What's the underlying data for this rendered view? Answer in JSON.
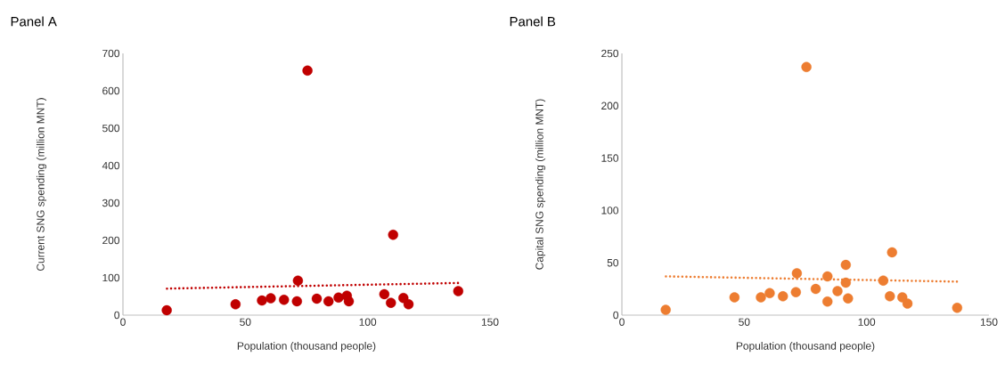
{
  "chart_data": [
    {
      "type": "scatter",
      "title": "Panel A",
      "xlabel": "Population (thousand people)",
      "ylabel": "Current SNG spending (million MNT)",
      "xlim": [
        0,
        150
      ],
      "xticks": [
        0,
        50,
        100,
        150
      ],
      "ylim": [
        0,
        700
      ],
      "yticks": [
        0,
        100,
        200,
        300,
        400,
        500,
        600,
        700
      ],
      "series": [
        {
          "color": "#c00000",
          "marker": "circle",
          "x": [
            17.9,
            46.0,
            56.8,
            60.4,
            65.8,
            71.1,
            71.5,
            75.4,
            79.2,
            84.0,
            88.1,
            91.5,
            92.3,
            106.8,
            110.4,
            109.5,
            114.6,
            116.7,
            137.0
          ],
          "values": [
            13,
            29,
            39,
            45,
            41,
            37,
            92,
            654,
            44,
            37,
            47,
            52,
            37,
            56,
            215,
            33,
            46,
            29,
            64
          ]
        },
        {
          "type": "line",
          "color": "#c00000",
          "marker": "none",
          "line_style": "dotted",
          "x": [
            18,
            137
          ],
          "values": [
            71,
            86
          ]
        }
      ]
    },
    {
      "type": "scatter",
      "title": "Panel B",
      "xlabel": "Population (thousand people)",
      "ylabel": "Capital SNG spending (million MNT)",
      "xlim": [
        0,
        150
      ],
      "xticks": [
        0,
        50,
        100,
        150
      ],
      "ylim": [
        0,
        250
      ],
      "yticks": [
        0,
        50,
        100,
        150,
        200,
        250
      ],
      "series": [
        {
          "color": "#ed7d31",
          "marker": "circle",
          "x": [
            17.9,
            46.0,
            56.8,
            60.4,
            65.8,
            71.1,
            71.5,
            75.4,
            79.2,
            84.0,
            84.0,
            88.1,
            91.5,
            91.5,
            92.4,
            106.8,
            109.5,
            110.4,
            114.6,
            116.7,
            137.0
          ],
          "values": [
            5,
            17,
            17,
            21,
            18,
            22,
            40,
            237,
            25,
            13,
            37,
            23,
            48,
            31,
            16,
            33,
            18,
            60,
            17,
            11,
            7
          ]
        },
        {
          "type": "line",
          "color": "#ed7d31",
          "marker": "none",
          "line_style": "dotted",
          "x": [
            18,
            137
          ],
          "values": [
            37,
            32
          ]
        }
      ]
    }
  ]
}
